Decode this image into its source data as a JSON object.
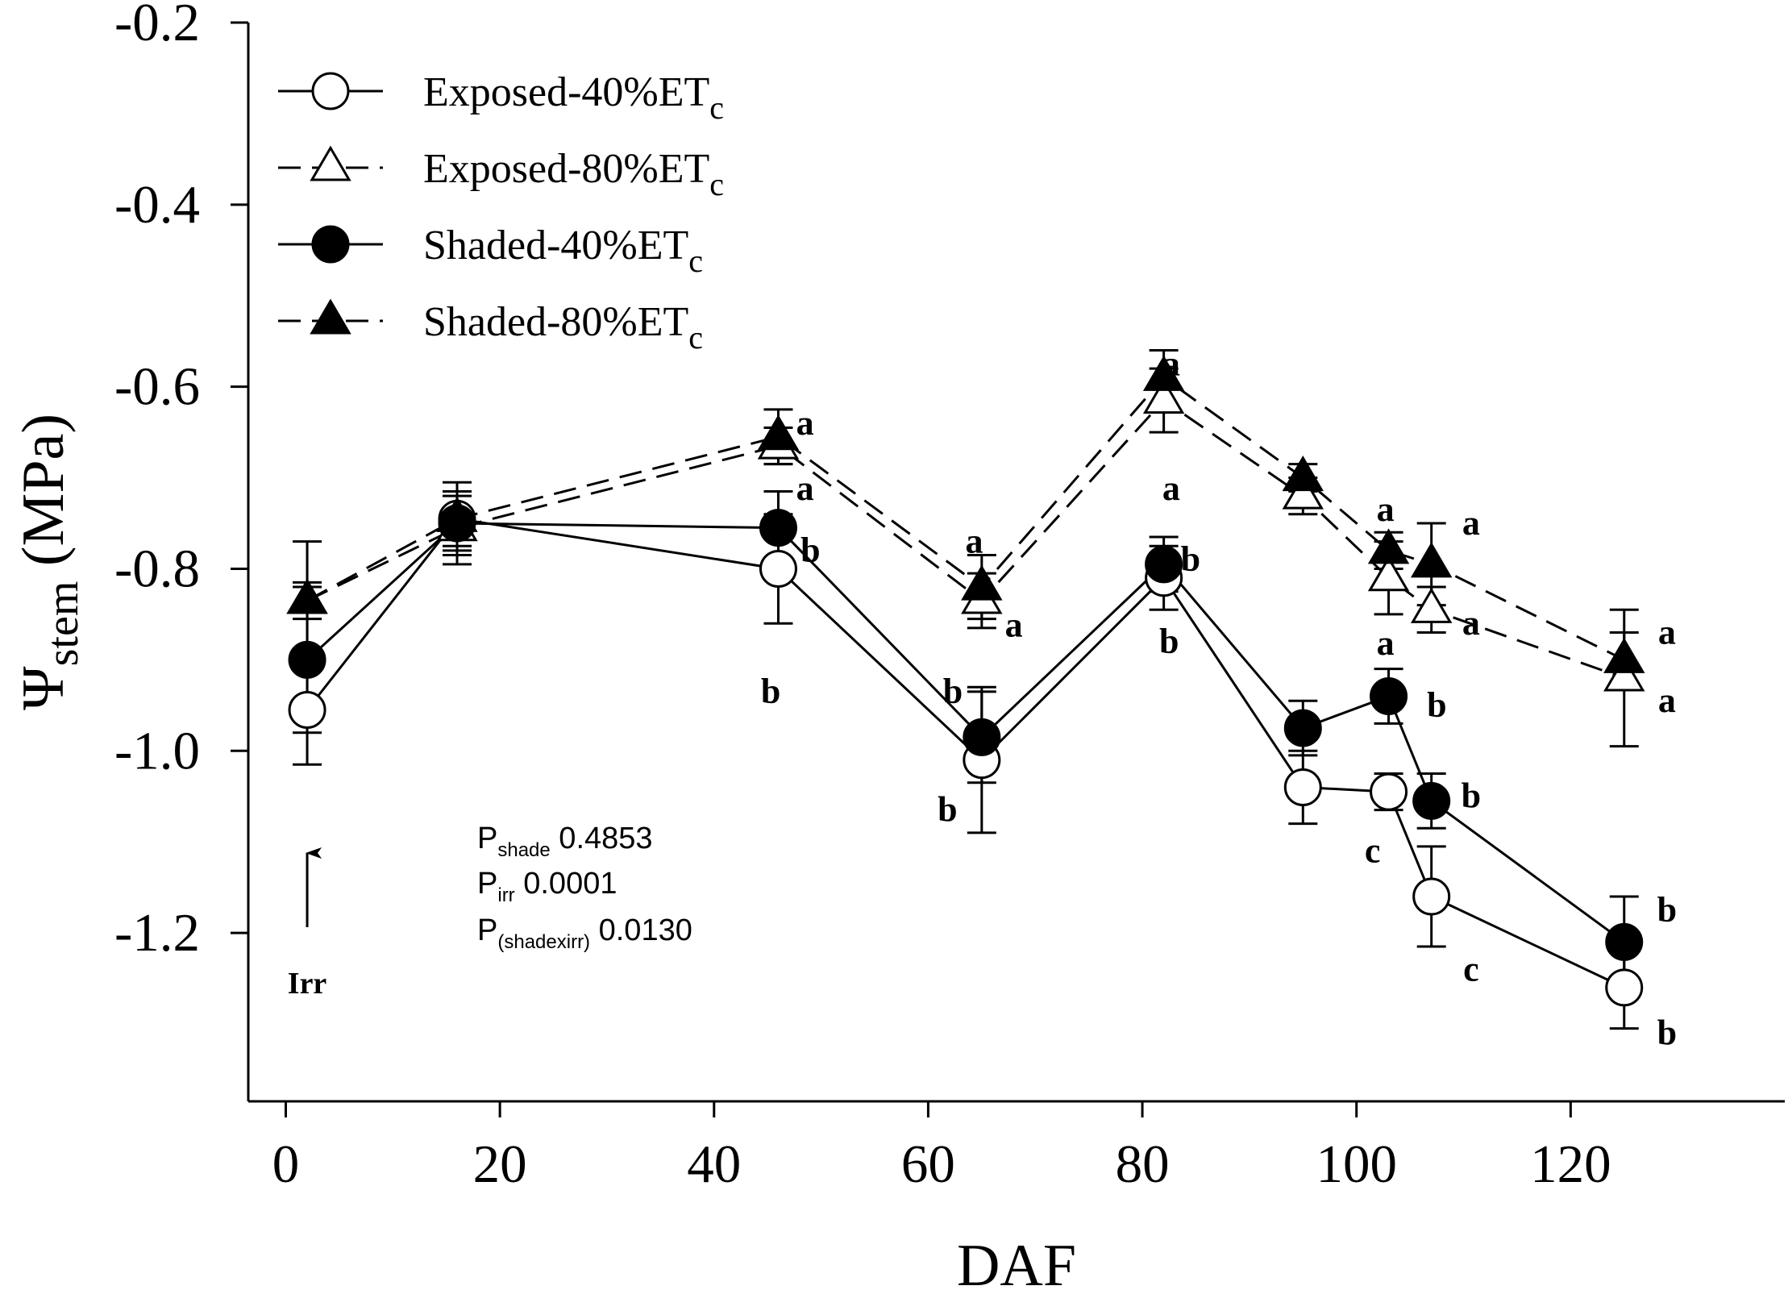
{
  "chart_data": {
    "type": "line",
    "xlabel": "DAF",
    "ylabel": {
      "main": "Ψ",
      "sub": "stem",
      "rest": " (MPa)"
    },
    "xlim": [
      -3.5,
      140
    ],
    "ylim": [
      -1.385,
      -0.2
    ],
    "xticks": [
      0,
      20,
      40,
      60,
      80,
      100,
      120
    ],
    "yticks": [
      -1.2,
      -1.0,
      -0.8,
      -0.6,
      -0.4,
      -0.2
    ],
    "ytick_labels": [
      "-1.2",
      "-1.0",
      "-0.8",
      "-0.6",
      "-0.4",
      "-0.2"
    ],
    "legend_position": "top-left",
    "series": [
      {
        "name": "Exposed-40%ET",
        "name_sub": "c",
        "marker": "circle",
        "filled": false,
        "dashed": false,
        "x": [
          2,
          16,
          46,
          65,
          82,
          95,
          103,
          107,
          125
        ],
        "y": [
          -0.955,
          -0.745,
          -0.8,
          -1.01,
          -0.81,
          -1.04,
          -1.045,
          -1.16,
          -1.26
        ],
        "err": [
          0.06,
          0.04,
          0.06,
          0.08,
          0.035,
          0.04,
          0.02,
          0.055,
          0.045
        ]
      },
      {
        "name": "Exposed-80%ET",
        "name_sub": "c",
        "marker": "triangle",
        "filled": false,
        "dashed": true,
        "x": [
          2,
          16,
          46,
          65,
          82,
          95,
          103,
          107,
          125
        ],
        "y": [
          -0.835,
          -0.755,
          -0.665,
          -0.835,
          -0.615,
          -0.72,
          -0.81,
          -0.845,
          -0.92
        ],
        "err": [
          0.02,
          0.04,
          0.02,
          0.03,
          0.035,
          0.02,
          0.04,
          0.025,
          0.075
        ]
      },
      {
        "name": "Shaded-40%ET",
        "name_sub": "c",
        "marker": "circle",
        "filled": true,
        "dashed": false,
        "x": [
          2,
          16,
          46,
          65,
          82,
          95,
          103,
          107,
          125
        ],
        "y": [
          -0.9,
          -0.75,
          -0.755,
          -0.985,
          -0.795,
          -0.975,
          -0.94,
          -1.055,
          -1.21
        ],
        "err": [
          0.08,
          0.03,
          0.04,
          0.05,
          0.03,
          0.03,
          0.03,
          0.03,
          0.05
        ]
      },
      {
        "name": "Shaded-80%ET",
        "name_sub": "c",
        "marker": "triangle",
        "filled": true,
        "dashed": true,
        "x": [
          2,
          16,
          46,
          65,
          82,
          95,
          103,
          107,
          125
        ],
        "y": [
          -0.835,
          -0.745,
          -0.655,
          -0.82,
          -0.59,
          -0.7,
          -0.78,
          -0.795,
          -0.9
        ],
        "err": [
          0.065,
          0.03,
          0.03,
          0.035,
          0.03,
          0.015,
          0.02,
          0.045,
          0.03
        ]
      }
    ],
    "significance_letters": [
      {
        "text": "a",
        "x": 48.5,
        "y": -0.64
      },
      {
        "text": "a",
        "x": 48.5,
        "y": -0.712
      },
      {
        "text": "b",
        "x": 49.0,
        "y": -0.78
      },
      {
        "text": "b",
        "x": 45.3,
        "y": -0.935
      },
      {
        "text": "a",
        "x": 64.3,
        "y": -0.77
      },
      {
        "text": "a",
        "x": 68.0,
        "y": -0.862
      },
      {
        "text": "b",
        "x": 62.3,
        "y": -0.935
      },
      {
        "text": "b",
        "x": 61.8,
        "y": -1.065
      },
      {
        "text": "a",
        "x": 82.7,
        "y": -0.575
      },
      {
        "text": "a",
        "x": 82.7,
        "y": -0.712
      },
      {
        "text": "b",
        "x": 84.5,
        "y": -0.79
      },
      {
        "text": "b",
        "x": 82.5,
        "y": -0.88
      },
      {
        "text": "a",
        "x": 102.7,
        "y": -0.735
      },
      {
        "text": "a",
        "x": 102.7,
        "y": -0.882
      },
      {
        "text": "b",
        "x": 107.5,
        "y": -0.95
      },
      {
        "text": "c",
        "x": 101.5,
        "y": -1.11
      },
      {
        "text": "a",
        "x": 110.7,
        "y": -0.75
      },
      {
        "text": "a",
        "x": 110.7,
        "y": -0.86
      },
      {
        "text": "b",
        "x": 110.7,
        "y": -1.05
      },
      {
        "text": "c",
        "x": 110.7,
        "y": -1.24
      },
      {
        "text": "a",
        "x": 129.0,
        "y": -0.87
      },
      {
        "text": "a",
        "x": 129.0,
        "y": -0.945
      },
      {
        "text": "b",
        "x": 129.0,
        "y": -1.175
      },
      {
        "text": "b",
        "x": 129.0,
        "y": -1.31
      }
    ],
    "annotations": {
      "stats": [
        {
          "label": "P",
          "sub": "shade",
          "value": " 0.4853"
        },
        {
          "label": "P",
          "sub": "irr",
          "value": " 0.0001"
        },
        {
          "label": "P",
          "sub": "(shadexirr)",
          "value": " 0.0130"
        }
      ],
      "arrow_label": "Irr",
      "arrow_x": 2
    }
  }
}
